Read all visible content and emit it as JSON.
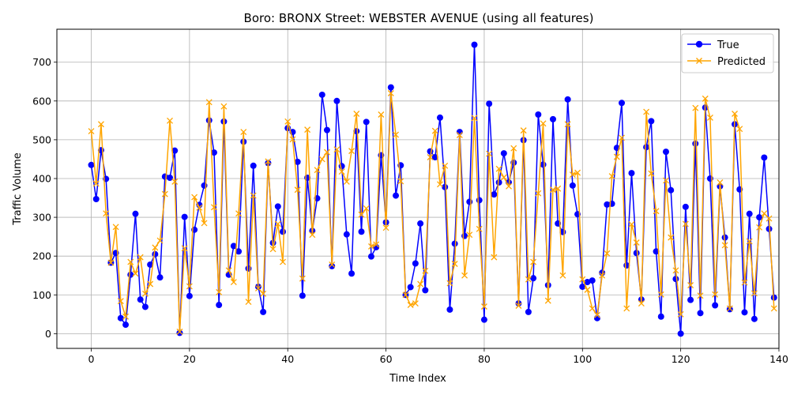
{
  "chart_data": {
    "type": "line",
    "title": "Boro: BRONX Street: WEBSTER AVENUE (using all features)",
    "xlabel": "Time Index",
    "ylabel": "Traffic Volume",
    "xlim": [
      -7,
      140
    ],
    "ylim": [
      -38,
      785
    ],
    "xticks": [
      0,
      20,
      40,
      60,
      80,
      100,
      120,
      140
    ],
    "yticks": [
      0,
      100,
      200,
      300,
      400,
      500,
      600,
      700
    ],
    "grid": true,
    "legend_position": "top-right",
    "series": [
      {
        "name": "True",
        "color": "#0000ff",
        "marker": "circle",
        "values": [
          435,
          347,
          473,
          399,
          183,
          208,
          40,
          23,
          152,
          309,
          88,
          69,
          178,
          205,
          145,
          405,
          402,
          472,
          2,
          301,
          97,
          268,
          332,
          382,
          550,
          467,
          74,
          547,
          152,
          226,
          212,
          495,
          168,
          433,
          121,
          56,
          440,
          234,
          328,
          263,
          530,
          520,
          443,
          98,
          402,
          265,
          349,
          616,
          525,
          174,
          600,
          432,
          256,
          155,
          522,
          263,
          546,
          199,
          223,
          460,
          287,
          635,
          356,
          434,
          100,
          120,
          181,
          284,
          112,
          470,
          455,
          557,
          378,
          62,
          232,
          520,
          252,
          340,
          745,
          344,
          36,
          593,
          359,
          390,
          465,
          390,
          441,
          78,
          499,
          56,
          143,
          565,
          436,
          125,
          553,
          284,
          262,
          604,
          382,
          308,
          121,
          133,
          137,
          40,
          157,
          333,
          335,
          479,
          595,
          176,
          414,
          208,
          88,
          481,
          548,
          212,
          44,
          469,
          370,
          141,
          0,
          327,
          87,
          490,
          53,
          583,
          400,
          73,
          380,
          248,
          63,
          540,
          372,
          55,
          309,
          38,
          300,
          454,
          270,
          93
        ]
      },
      {
        "name": "Predicted",
        "color": "#ffa500",
        "marker": "x",
        "values": [
          522,
          387,
          540,
          310,
          183,
          275,
          84,
          44,
          185,
          155,
          197,
          103,
          128,
          222,
          240,
          360,
          549,
          392,
          5,
          220,
          122,
          352,
          325,
          285,
          597,
          326,
          107,
          586,
          163,
          133,
          310,
          520,
          82,
          356,
          117,
          103,
          444,
          218,
          283,
          185,
          547,
          501,
          371,
          142,
          526,
          255,
          422,
          450,
          468,
          178,
          475,
          418,
          392,
          471,
          567,
          307,
          323,
          225,
          230,
          565,
          273,
          620,
          513,
          393,
          100,
          74,
          78,
          128,
          162,
          455,
          523,
          385,
          433,
          130,
          180,
          512,
          150,
          255,
          556,
          270,
          70,
          464,
          197,
          425,
          403,
          380,
          478,
          72,
          524,
          140,
          185,
          362,
          542,
          85,
          371,
          374,
          150,
          540,
          410,
          415,
          140,
          113,
          65,
          48,
          150,
          207,
          406,
          456,
          505,
          65,
          282,
          235,
          78,
          572,
          413,
          316,
          101,
          395,
          248,
          163,
          50,
          283,
          125,
          582,
          98,
          606,
          557,
          101,
          390,
          228,
          65,
          567,
          528,
          132,
          238,
          104,
          274,
          310,
          297,
          65
        ]
      }
    ]
  }
}
